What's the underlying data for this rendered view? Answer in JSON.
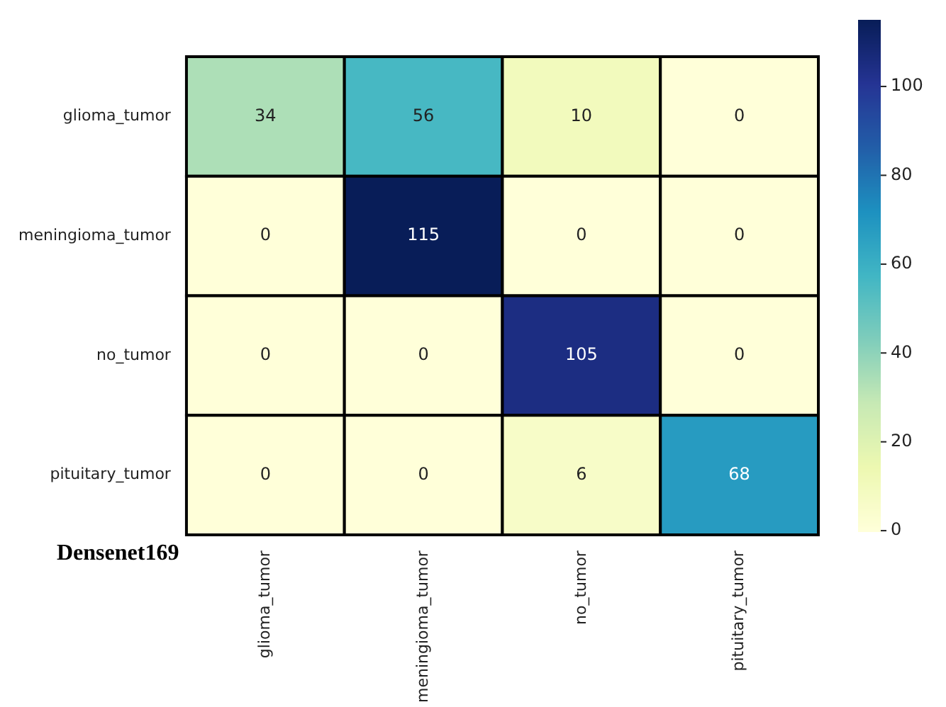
{
  "chart_data": {
    "type": "heatmap",
    "categories": [
      "glioma_tumor",
      "meningioma_tumor",
      "no_tumor",
      "pituitary_tumor"
    ],
    "y_categories": [
      "glioma_tumor",
      "meningioma_tumor",
      "no_tumor",
      "pituitary_tumor"
    ],
    "cells": [
      [
        34,
        56,
        10,
        0
      ],
      [
        0,
        115,
        0,
        0
      ],
      [
        0,
        0,
        105,
        0
      ],
      [
        0,
        0,
        6,
        68
      ]
    ],
    "data_labels": true,
    "clim": [
      0,
      115
    ],
    "cticks": [
      0,
      20,
      40,
      60,
      80,
      100
    ],
    "annotations": [
      "Densenet169"
    ]
  }
}
